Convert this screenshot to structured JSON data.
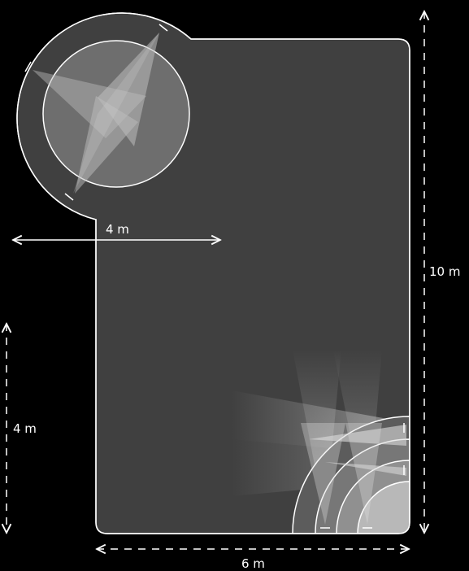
{
  "dimensions": {
    "arc_radius": "4 m",
    "room_height": "10 m",
    "lower_height": "4 m",
    "room_width": "6 m"
  },
  "colors": {
    "background": "#000000",
    "floor": "#404040",
    "outline": "#ffffff",
    "beam": "#bdbdbd"
  },
  "icons": [
    "spotlight-icon",
    "spotlight-icon"
  ]
}
